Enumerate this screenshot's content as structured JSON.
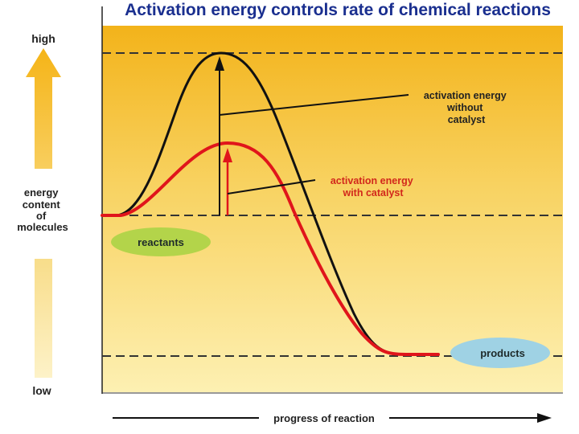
{
  "title": "Activation energy controls rate of chemical reactions",
  "y_axis": {
    "high": "high",
    "low": "low",
    "label_lines": [
      "energy",
      "content",
      "of",
      "molecules"
    ]
  },
  "x_axis": {
    "label": "progress of reaction"
  },
  "annotations": {
    "without_catalyst": [
      "activation energy",
      "without",
      "catalyst"
    ],
    "with_catalyst": [
      "activation energy",
      "with catalyst"
    ]
  },
  "states": {
    "reactants": "reactants",
    "products": "products"
  },
  "colors": {
    "background_top": "#f3b31a",
    "background_bottom": "#fdf0b2",
    "curve_without_catalyst": "#111111",
    "curve_with_catalyst": "#e0151b",
    "annotation_text": "#d2281c",
    "reactants_oval": "#b3d44a",
    "products_oval": "#9fd2e4",
    "title_text": "#1a2f8f",
    "arrow_high": "#f5b417"
  }
}
